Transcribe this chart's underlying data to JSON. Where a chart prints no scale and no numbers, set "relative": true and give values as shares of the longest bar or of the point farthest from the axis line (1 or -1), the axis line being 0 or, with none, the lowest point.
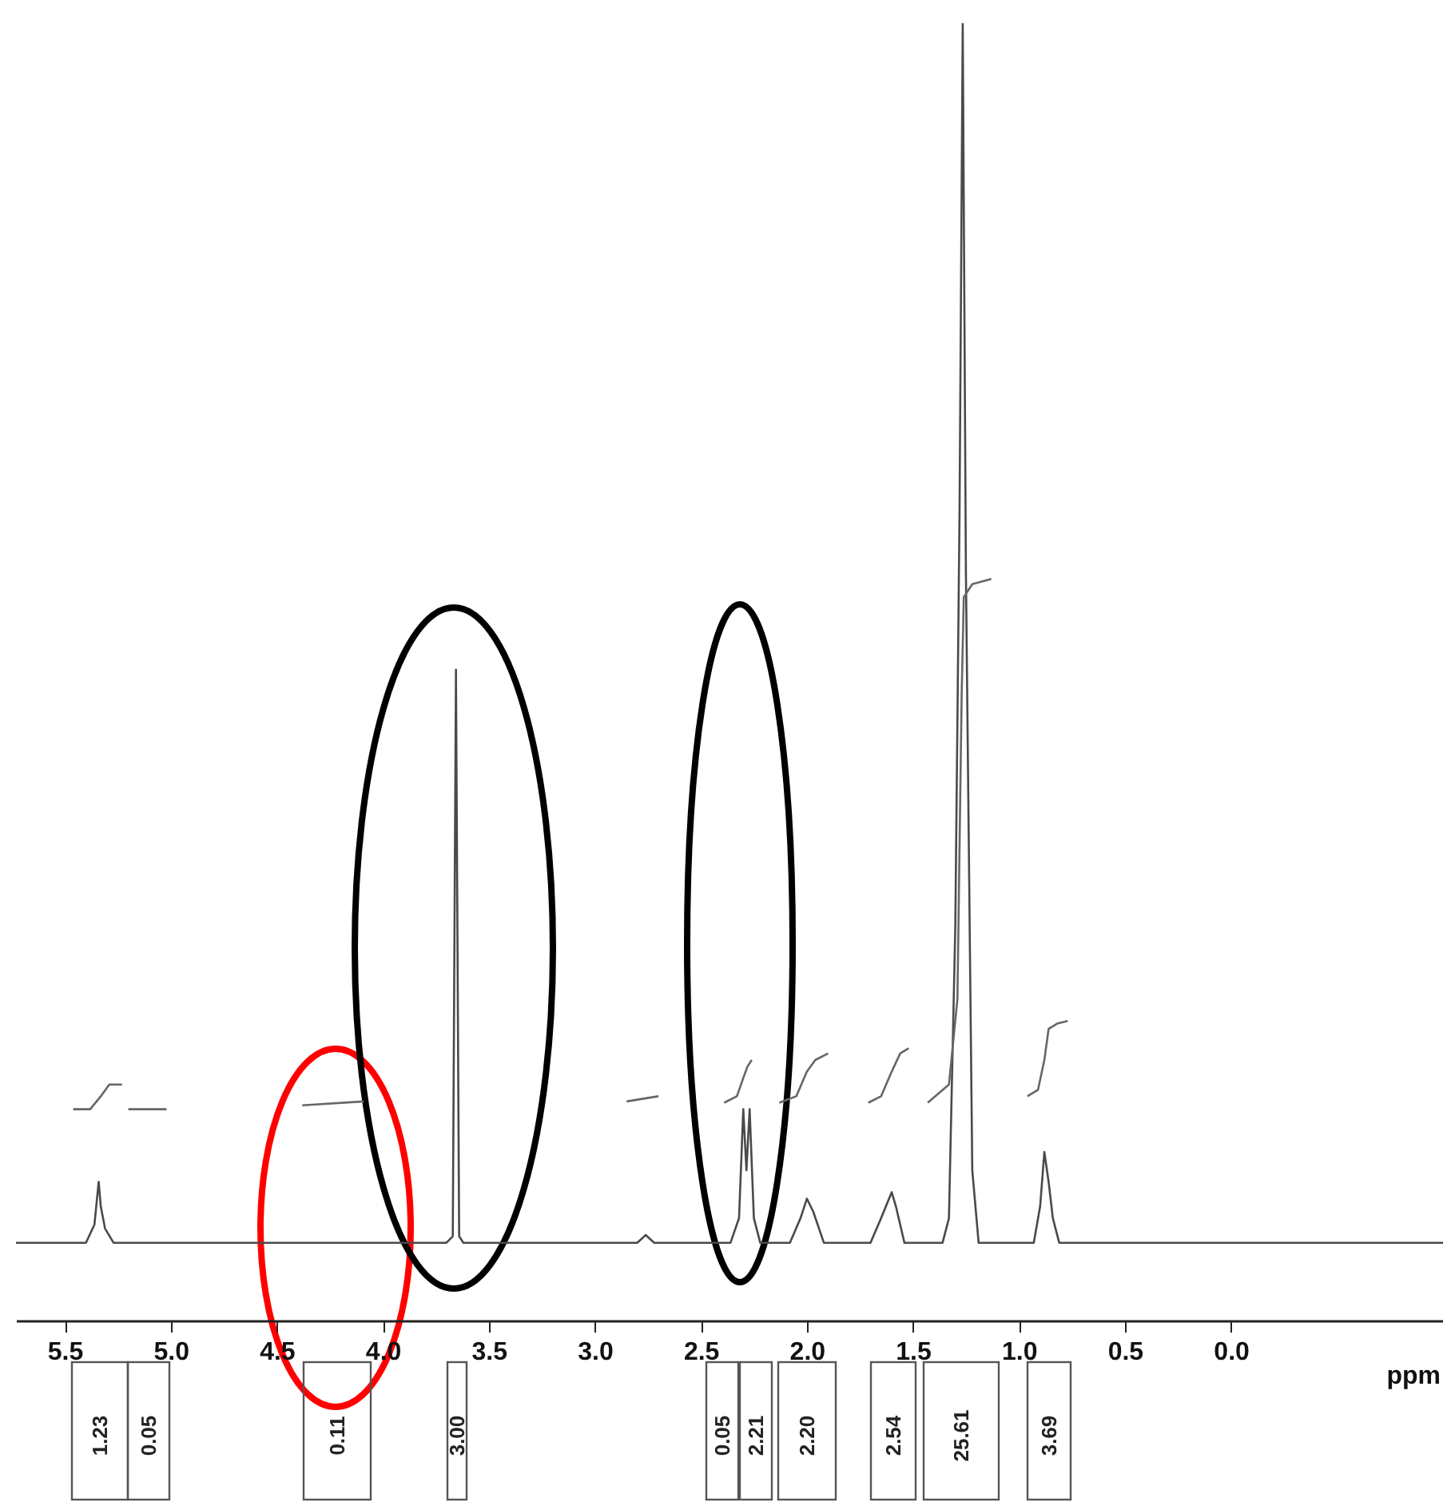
{
  "chart_data": {
    "type": "line",
    "relative": true,
    "xlabel": "ppm",
    "xlim": [
      5.73,
      -1.0
    ],
    "xticks": [
      {
        "value": 5.5,
        "label": "5.5"
      },
      {
        "value": 5.0,
        "label": "5.0"
      },
      {
        "value": 4.5,
        "label": "4.5"
      },
      {
        "value": 4.0,
        "label": "4.0"
      },
      {
        "value": 3.5,
        "label": "3.5"
      },
      {
        "value": 3.0,
        "label": "3.0"
      },
      {
        "value": 2.5,
        "label": "2.5"
      },
      {
        "value": 2.0,
        "label": "2.0"
      },
      {
        "value": 1.5,
        "label": "1.5"
      },
      {
        "value": 1.0,
        "label": "1.0"
      },
      {
        "value": 0.5,
        "label": "0.5"
      },
      {
        "value": 0.0,
        "label": "0.0"
      }
    ],
    "line_style": "solid",
    "series": [
      {
        "color": "#4a4a4a",
        "x": [
          5.73,
          5.4,
          5.36,
          5.34,
          5.33,
          5.31,
          5.27,
          3.7,
          3.67,
          3.655,
          3.64,
          3.62,
          2.8,
          2.76,
          2.72,
          2.36,
          2.32,
          2.3,
          2.285,
          2.27,
          2.25,
          2.22,
          2.08,
          2.03,
          2.0,
          1.97,
          1.92,
          1.7,
          1.65,
          1.6,
          1.58,
          1.54,
          1.36,
          1.33,
          1.3,
          1.28,
          1.265,
          1.25,
          1.22,
          1.19,
          0.93,
          0.9,
          0.88,
          0.86,
          0.84,
          0.81,
          -1.0
        ],
        "values": [
          0.06,
          0.06,
          0.074,
          0.107,
          0.088,
          0.071,
          0.06,
          0.06,
          0.065,
          0.502,
          0.065,
          0.06,
          0.06,
          0.066,
          0.06,
          0.06,
          0.079,
          0.163,
          0.116,
          0.163,
          0.079,
          0.06,
          0.06,
          0.079,
          0.094,
          0.084,
          0.06,
          0.06,
          0.079,
          0.099,
          0.088,
          0.06,
          0.06,
          0.079,
          0.304,
          0.624,
          1,
          0.577,
          0.116,
          0.06,
          0.06,
          0.088,
          0.13,
          0.107,
          0.079,
          0.06,
          0.06
        ]
      },
      {
        "color": "#666666",
        "x": [
          5.46,
          5.38,
          5.33,
          5.29,
          5.23,
          5.215,
          5.2,
          5.02,
          5.01,
          4.38,
          4.09,
          4.08,
          2.85,
          2.7,
          2.6,
          2.39,
          2.33,
          2.3,
          2.28,
          2.26,
          2.2,
          2.13,
          2.05,
          2.0,
          1.96,
          1.9,
          1.8,
          1.71,
          1.65,
          1.6,
          1.56,
          1.52,
          1.5,
          1.43,
          1.33,
          1.29,
          1.27,
          1.26,
          1.22,
          1.13,
          1.0,
          0.96,
          0.91,
          0.88,
          0.86,
          0.82,
          0.77
        ],
        "values": [
          0.163,
          0.163,
          0.173,
          0.182,
          0.182,
          null,
          0.163,
          0.163,
          null,
          0.166,
          0.169,
          null,
          0.169,
          0.173,
          null,
          0.168,
          0.173,
          0.187,
          0.196,
          0.201,
          null,
          0.168,
          0.173,
          0.192,
          0.201,
          0.206,
          null,
          0.168,
          0.173,
          0.192,
          0.206,
          0.21,
          null,
          0.168,
          0.182,
          0.248,
          0.483,
          0.558,
          0.568,
          0.572,
          null,
          0.173,
          0.178,
          0.201,
          0.225,
          0.229,
          0.231
        ]
      }
    ],
    "annotations": [
      "1.23",
      "0.05",
      "0.11",
      "3.00",
      "0.05",
      "2.21",
      "2.20",
      "2.54",
      "25.61",
      "3.69"
    ]
  }
}
